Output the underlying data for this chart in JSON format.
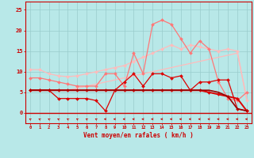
{
  "x": [
    0,
    1,
    2,
    3,
    4,
    5,
    6,
    7,
    8,
    9,
    10,
    11,
    12,
    13,
    14,
    15,
    16,
    17,
    18,
    19,
    20,
    21,
    22,
    23
  ],
  "background_color": "#b8e8e8",
  "grid_color": "#99cccc",
  "lines": [
    {
      "label": "line1_light_pink_upper",
      "color": "#ffbbbb",
      "linewidth": 0.9,
      "marker": "D",
      "markersize": 2.0,
      "y": [
        10.5,
        10.5,
        9.5,
        9.0,
        8.8,
        9.0,
        9.5,
        10.0,
        10.5,
        11.0,
        11.5,
        12.5,
        13.5,
        14.5,
        15.5,
        16.5,
        15.5,
        16.5,
        16.0,
        15.5,
        15.0,
        15.5,
        15.0,
        3.0
      ]
    },
    {
      "label": "line2_light_pink_lower",
      "color": "#ffbbbb",
      "linewidth": 0.9,
      "marker": null,
      "markersize": 0,
      "y": [
        5.5,
        5.5,
        5.5,
        5.5,
        5.5,
        6.0,
        6.5,
        7.0,
        7.5,
        8.0,
        8.5,
        9.0,
        9.5,
        10.0,
        10.5,
        11.0,
        11.5,
        12.0,
        12.5,
        13.0,
        13.5,
        14.0,
        14.5,
        3.5
      ]
    },
    {
      "label": "line3_pink_spiky",
      "color": "#ff7777",
      "linewidth": 0.9,
      "marker": "D",
      "markersize": 2.0,
      "y": [
        8.5,
        8.5,
        8.0,
        7.5,
        7.0,
        6.5,
        6.5,
        6.5,
        9.5,
        9.5,
        6.5,
        14.5,
        9.5,
        21.5,
        22.5,
        21.5,
        18.0,
        14.5,
        17.5,
        15.5,
        7.5,
        3.5,
        3.0,
        5.0
      ]
    },
    {
      "label": "line4_dark_red_spiky",
      "color": "#dd0000",
      "linewidth": 0.9,
      "marker": "D",
      "markersize": 2.0,
      "y": [
        5.5,
        5.5,
        5.5,
        3.5,
        3.5,
        3.5,
        3.5,
        3.0,
        0.5,
        5.5,
        7.5,
        9.5,
        6.5,
        9.5,
        9.5,
        8.5,
        9.0,
        5.5,
        7.5,
        7.5,
        8.0,
        8.0,
        1.0,
        0.5
      ]
    },
    {
      "label": "line5_red_flat",
      "color": "#dd0000",
      "linewidth": 1.4,
      "marker": "D",
      "markersize": 2.0,
      "y": [
        5.5,
        5.5,
        5.5,
        5.5,
        5.5,
        5.5,
        5.5,
        5.5,
        5.5,
        5.5,
        5.5,
        5.5,
        5.5,
        5.5,
        5.5,
        5.5,
        5.5,
        5.5,
        5.5,
        5.0,
        4.5,
        4.0,
        3.5,
        0.5
      ]
    },
    {
      "label": "line6_dark_descend",
      "color": "#990000",
      "linewidth": 1.2,
      "marker": null,
      "markersize": 0,
      "y": [
        5.5,
        5.5,
        5.5,
        5.5,
        5.5,
        5.5,
        5.5,
        5.5,
        5.5,
        5.5,
        5.5,
        5.5,
        5.5,
        5.5,
        5.5,
        5.5,
        5.5,
        5.5,
        5.5,
        5.5,
        5.0,
        4.0,
        1.0,
        0.5
      ]
    }
  ],
  "ylabel_ticks": [
    0,
    5,
    10,
    15,
    20,
    25
  ],
  "xlabel": "Vent moyen/en rafales ( km/h )",
  "xlim": [
    -0.5,
    23.5
  ],
  "ylim": [
    -2.5,
    27
  ],
  "plot_ylim": [
    0,
    26
  ],
  "tick_color": "#cc0000",
  "label_color": "#cc0000",
  "axis_color": "#cc0000",
  "arrow_angles": [
    225,
    225,
    225,
    225,
    225,
    225,
    225,
    225,
    270,
    270,
    270,
    270,
    270,
    270,
    270,
    270,
    270,
    270,
    270,
    270,
    270,
    270,
    270,
    270
  ]
}
